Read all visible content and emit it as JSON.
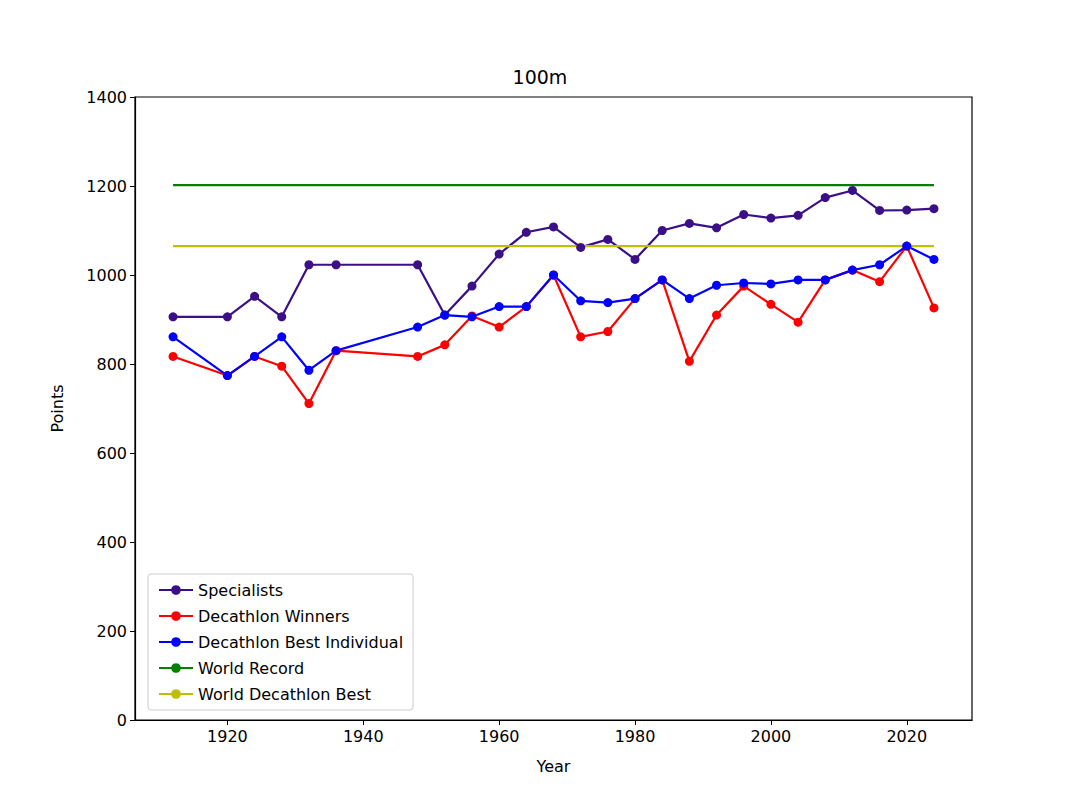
{
  "chart_data": {
    "type": "line",
    "title": "100m",
    "x_label": "Year",
    "y_label": "Points",
    "xlim": [
      1906.4,
      2029.6
    ],
    "xticks": [
      1920,
      1940,
      1960,
      1980,
      2000,
      2020
    ],
    "ylim": [
      0,
      1400
    ],
    "yticks": [
      0,
      200,
      400,
      600,
      800,
      1000,
      1200,
      1400
    ],
    "grid": false,
    "legend": "lower left",
    "series": [
      {
        "name": "Specialists",
        "color": "#3b0f87",
        "marker": "o",
        "line_style": "solid",
        "x": [
          1912,
          1920,
          1924,
          1928,
          1932,
          1936,
          1948,
          1952,
          1956,
          1960,
          1964,
          1968,
          1972,
          1976,
          1980,
          1984,
          1988,
          1992,
          1996,
          2000,
          2004,
          2008,
          2012,
          2016,
          2020,
          2024
        ],
        "values": [
          906,
          906,
          952,
          906,
          1023,
          1023,
          1023,
          910,
          975,
          1047,
          1096,
          1108,
          1062,
          1080,
          1035,
          1100,
          1116,
          1106,
          1136,
          1128,
          1134,
          1174,
          1190,
          1145,
          1146,
          1149
        ]
      },
      {
        "name": "Decathlon Winners",
        "color": "#ff0000",
        "marker": "o",
        "line_style": "solid",
        "x": [
          1912,
          1920,
          1924,
          1928,
          1932,
          1936,
          1948,
          1952,
          1956,
          1960,
          1964,
          1968,
          1972,
          1976,
          1980,
          1984,
          1988,
          1992,
          1996,
          2000,
          2004,
          2008,
          2012,
          2016,
          2020,
          2024
        ],
        "values": [
          817,
          774,
          817,
          795,
          711,
          830,
          817,
          843,
          908,
          883,
          929,
          1000,
          861,
          873,
          947,
          989,
          806,
          910,
          975,
          934,
          894,
          989,
          1011,
          985,
          1065,
          926
        ]
      },
      {
        "name": "Decathlon Best Individual",
        "color": "#0000ff",
        "marker": "o",
        "line_style": "solid",
        "x": [
          1912,
          1920,
          1924,
          1928,
          1932,
          1936,
          1948,
          1952,
          1956,
          1960,
          1964,
          1968,
          1972,
          1976,
          1980,
          1984,
          1988,
          1992,
          1996,
          2000,
          2004,
          2008,
          2012,
          2016,
          2020,
          2024
        ],
        "values": [
          861,
          774,
          817,
          861,
          786,
          830,
          883,
          910,
          906,
          929,
          929,
          1000,
          942,
          938,
          947,
          989,
          947,
          977,
          982,
          980,
          989,
          989,
          1011,
          1023,
          1065,
          1035
        ]
      },
      {
        "name": "World Record",
        "color": "#008000",
        "marker": "none",
        "line_style": "solid",
        "x": [
          1912,
          2024
        ],
        "values": [
          1202,
          1202
        ]
      },
      {
        "name": "World Decathlon Best",
        "color": "#bfbf00",
        "marker": "none",
        "line_style": "solid",
        "x": [
          1912,
          2024
        ],
        "values": [
          1065,
          1065
        ]
      }
    ]
  }
}
